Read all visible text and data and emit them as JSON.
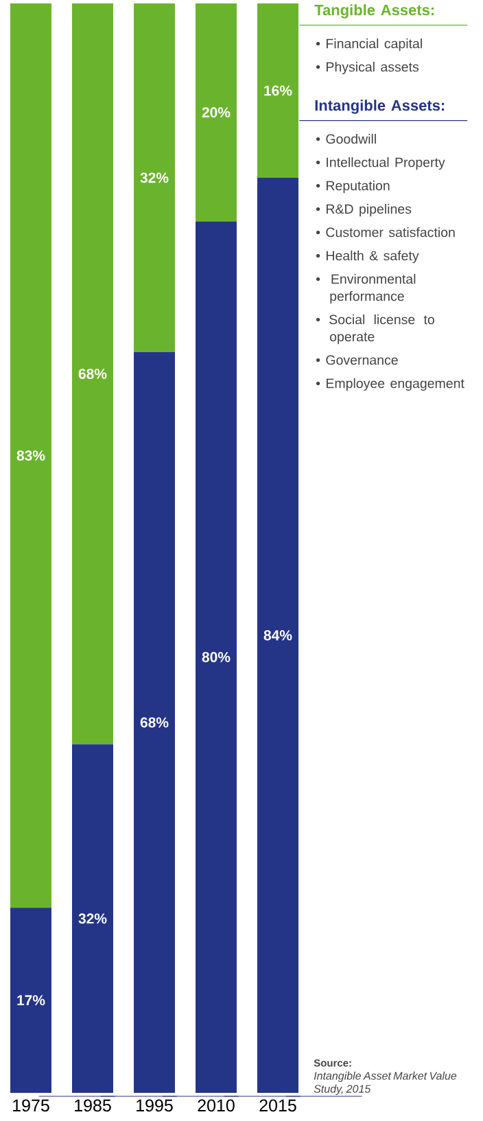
{
  "chart_data": {
    "type": "bar",
    "stacked": true,
    "categories": [
      "1975",
      "1985",
      "1995",
      "2010",
      "2015"
    ],
    "series": [
      {
        "name": "Intangible Assets:",
        "color": "#243588",
        "values": [
          17,
          32,
          68,
          80,
          84
        ],
        "value_labels": [
          "17%",
          "32%",
          "68%",
          "80%",
          "84%"
        ]
      },
      {
        "name": "Tangible Assets:",
        "color": "#6ab42d",
        "values": [
          83,
          68,
          32,
          20,
          16
        ],
        "value_labels": [
          "83%",
          "68%",
          "32%",
          "20%",
          "16%"
        ]
      }
    ],
    "ylim": [
      0,
      100
    ],
    "tick_labels": "x",
    "legend": "right",
    "annotations": [
      "• Financial capital",
      "• Physical assets",
      "• Goodwill",
      "• Intellectual Property",
      "• Reputation",
      "• R&D pipelines",
      "• Customer satisfaction",
      "• Health & safety",
      "• Environmental performance",
      "• Social license to operate",
      "• Governance",
      "• Employee engagement",
      "Source:",
      "Intangible Asset Market Value Study, 2015"
    ]
  }
}
